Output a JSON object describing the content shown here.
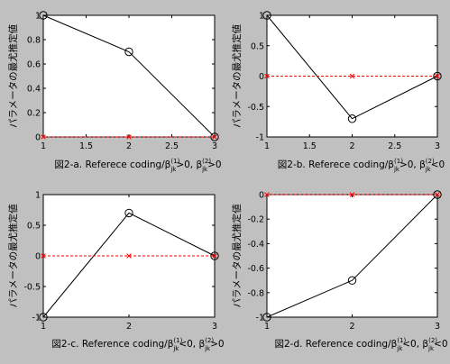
{
  "chart_data": [
    {
      "type": "line",
      "ylabel": "パラメータの最尤推定値",
      "caption": "図2-a. Referece coding/β",
      "caption_sup1": "(1)",
      "caption_sub1": "jk",
      "caption_mid": ">0, β",
      "caption_sup2": "(2)",
      "caption_sub2": "jk",
      "caption_end": ">0",
      "xlim": [
        1,
        3
      ],
      "ylim": [
        0,
        1
      ],
      "xticks": [
        1,
        1.5,
        2,
        2.5,
        3
      ],
      "xtick_labels": [
        "1",
        "1.5",
        "2",
        "2.5",
        "3"
      ],
      "yticks": [
        0,
        0.2,
        0.4,
        0.6,
        0.8,
        1
      ],
      "ytick_labels": [
        "0",
        "0.2",
        "0.4",
        "0.6",
        "0.8",
        "1"
      ],
      "series": [
        {
          "style": "solid-circle",
          "color": "#000000",
          "x": [
            1,
            2,
            3
          ],
          "y": [
            1,
            0.7,
            0
          ]
        },
        {
          "style": "dashed-x",
          "color": "#ff0000",
          "x": [
            1,
            2,
            3
          ],
          "y": [
            0,
            0,
            0
          ]
        }
      ]
    },
    {
      "type": "line",
      "ylabel": "パラメータの最尤推定値",
      "caption": "図2-b. Referece coding/β",
      "caption_sup1": "(1)",
      "caption_sub1": "jk",
      "caption_mid": ">0, β",
      "caption_sup2": "(2)",
      "caption_sub2": "jk",
      "caption_end": "<0",
      "xlim": [
        1,
        3
      ],
      "ylim": [
        -1,
        1
      ],
      "xticks": [
        1,
        1.5,
        2,
        2.5,
        3
      ],
      "xtick_labels": [
        "1",
        "1.5",
        "2",
        "2.5",
        "3"
      ],
      "yticks": [
        -1,
        -0.5,
        0,
        0.5,
        1
      ],
      "ytick_labels": [
        "-1",
        "-0.5",
        "0",
        "0.5",
        "1"
      ],
      "series": [
        {
          "style": "solid-circle",
          "color": "#000000",
          "x": [
            1,
            2,
            3
          ],
          "y": [
            1,
            -0.7,
            0
          ]
        },
        {
          "style": "dashed-x",
          "color": "#ff0000",
          "x": [
            1,
            2,
            3
          ],
          "y": [
            0,
            0,
            0
          ]
        }
      ]
    },
    {
      "type": "line",
      "ylabel": "パラメータの最尤推定値",
      "caption": "図2-c. Reference coding/β",
      "caption_sup1": "(1)",
      "caption_sub1": "jk",
      "caption_mid": "<0, β",
      "caption_sup2": "(2)",
      "caption_sub2": "jk",
      "caption_end": ">0",
      "xlim": [
        1,
        3
      ],
      "ylim": [
        -1,
        1
      ],
      "xticks": [
        1,
        2,
        3
      ],
      "xtick_labels": [
        "1",
        "2",
        "3"
      ],
      "yticks": [
        -1,
        -0.5,
        0,
        0.5,
        1
      ],
      "ytick_labels": [
        "-1",
        "-0.5",
        "0",
        "0.5",
        "1"
      ],
      "series": [
        {
          "style": "solid-circle",
          "color": "#000000",
          "x": [
            1,
            2,
            3
          ],
          "y": [
            -1,
            0.7,
            0
          ]
        },
        {
          "style": "dashed-x",
          "color": "#ff0000",
          "x": [
            1,
            2,
            3
          ],
          "y": [
            0,
            0,
            0
          ]
        }
      ]
    },
    {
      "type": "line",
      "ylabel": "パラメータの最尤推定値",
      "caption": "図2-d. Reference coding/β",
      "caption_sup1": "(1)",
      "caption_sub1": "jk",
      "caption_mid": "<0, β",
      "caption_sup2": "(2)",
      "caption_sub2": "jk",
      "caption_end": "<0",
      "xlim": [
        1,
        3
      ],
      "ylim": [
        -1,
        0
      ],
      "xticks": [
        1,
        2,
        3
      ],
      "xtick_labels": [
        "1",
        "2",
        "3"
      ],
      "yticks": [
        -1,
        -0.8,
        -0.6,
        -0.4,
        -0.2,
        0
      ],
      "ytick_labels": [
        "-1",
        "-0.8",
        "-0.6",
        "-0.4",
        "-0.2",
        "0"
      ],
      "series": [
        {
          "style": "solid-circle",
          "color": "#000000",
          "x": [
            1,
            2,
            3
          ],
          "y": [
            -1,
            -0.7,
            0
          ]
        },
        {
          "style": "dashed-x",
          "color": "#ff0000",
          "x": [
            1,
            2,
            3
          ],
          "y": [
            0,
            0,
            0
          ]
        }
      ]
    }
  ]
}
